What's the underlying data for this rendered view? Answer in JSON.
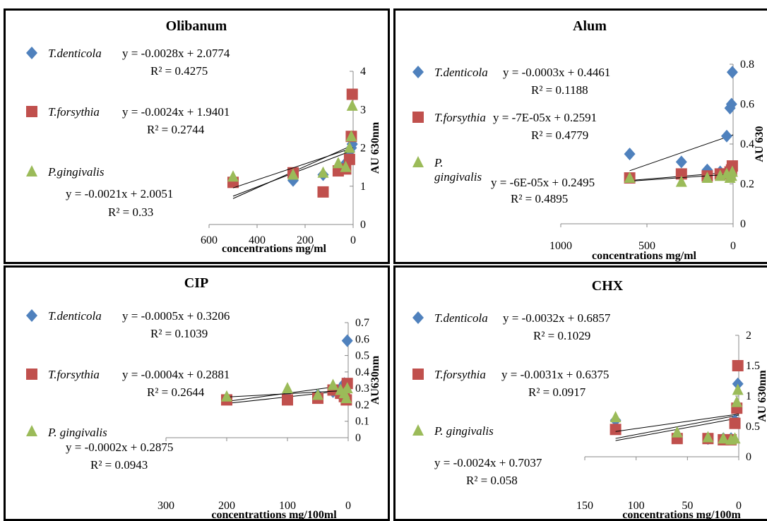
{
  "colors": {
    "td": "#4F81BD",
    "tf": "#C0504D",
    "pg": "#9BBB59"
  },
  "chart_data": [
    {
      "type": "scatter",
      "title": "Olibanum",
      "xlabel": "concentrations mg/ml",
      "ylabel": "AU 630nm",
      "xlim": [
        600,
        0
      ],
      "ylim": [
        0,
        4
      ],
      "xticks": [
        "600",
        "400",
        "200",
        "0"
      ],
      "yticks": [
        "0",
        "1",
        "2",
        "3",
        "4"
      ],
      "series": [
        {
          "name": "T.denticola",
          "marker": "diamond",
          "x": [
            500,
            250,
            125,
            62,
            31,
            15,
            7.5,
            3.75
          ],
          "y": [
            1.15,
            1.15,
            1.3,
            1.5,
            1.6,
            1.9,
            2.0,
            2.1
          ],
          "equation": "y = -0.0028x + 2.0774",
          "r2": "R² = 0.4275"
        },
        {
          "name": "T.forsythia",
          "marker": "square",
          "x": [
            500,
            250,
            125,
            62,
            31,
            15,
            7.5,
            3.75
          ],
          "y": [
            1.1,
            1.35,
            0.85,
            1.4,
            1.45,
            1.7,
            2.3,
            3.4
          ],
          "equation": "y = -0.0024x + 1.9401",
          "r2": "R² = 0.2744"
        },
        {
          "name": "P.gingivalis",
          "marker": "triangle",
          "x": [
            500,
            250,
            125,
            62,
            31,
            15,
            7.5,
            3.75
          ],
          "y": [
            1.25,
            1.3,
            1.35,
            1.6,
            1.5,
            2.0,
            2.3,
            3.1
          ],
          "equation": "y = -0.0021x + 2.0051",
          "r2": "R² = 0.33"
        }
      ]
    },
    {
      "type": "scatter",
      "title": "Alum",
      "xlabel": "concentrations mg/ml",
      "ylabel": "AU 630",
      "xlim": [
        1000,
        0
      ],
      "ylim": [
        0,
        0.8
      ],
      "xticks": [
        "1000",
        "500",
        "0"
      ],
      "yticks": [
        "0",
        "0.2",
        "0.4",
        "0.6",
        "0.8"
      ],
      "series": [
        {
          "name": "T.denticola",
          "marker": "diamond",
          "x": [
            600,
            300,
            150,
            75,
            37,
            18,
            9,
            4.5
          ],
          "y": [
            0.35,
            0.31,
            0.27,
            0.26,
            0.44,
            0.58,
            0.6,
            0.76
          ],
          "equation": "y = -0.0003x + 0.4461",
          "r2": "R² = 0.1188"
        },
        {
          "name": "T.forsythia",
          "marker": "square",
          "x": [
            600,
            300,
            150,
            75,
            37,
            18,
            9,
            4.5
          ],
          "y": [
            0.23,
            0.25,
            0.24,
            0.25,
            0.25,
            0.26,
            0.27,
            0.29
          ],
          "equation": "y = -7E-05x + 0.2591",
          "r2": "R² = 0.4779"
        },
        {
          "name": "P.\ngingivalis",
          "marker": "triangle",
          "x": [
            600,
            300,
            150,
            75,
            37,
            18,
            9,
            4.5
          ],
          "y": [
            0.23,
            0.21,
            0.23,
            0.24,
            0.25,
            0.23,
            0.24,
            0.26
          ],
          "equation": "y = -6E-05x + 0.2495",
          "r2": "R² = 0.4895"
        }
      ]
    },
    {
      "type": "scatter",
      "title": "CIP",
      "xlabel": "concentrattions mg/100ml",
      "ylabel": "AU630nm",
      "xlim": [
        300,
        0
      ],
      "ylim": [
        0,
        0.7
      ],
      "xticks": [
        "300",
        "200",
        "100",
        "0"
      ],
      "yticks": [
        "0",
        "0.1",
        "0.2",
        "0.3",
        "0.4",
        "0.5",
        "0.6",
        "0.7"
      ],
      "series": [
        {
          "name": "T.denticola",
          "marker": "diamond",
          "x": [
            200,
            100,
            50,
            25,
            12.5,
            6.25,
            3.1,
            1.5
          ],
          "y": [
            0.24,
            0.25,
            0.26,
            0.28,
            0.3,
            0.33,
            0.3,
            0.59
          ],
          "equation": "y = -0.0005x + 0.3206",
          "r2": "R² = 0.1039"
        },
        {
          "name": "T.forsythia",
          "marker": "square",
          "x": [
            200,
            100,
            50,
            25,
            12.5,
            6.25,
            3.1,
            1.5
          ],
          "y": [
            0.23,
            0.23,
            0.24,
            0.29,
            0.27,
            0.25,
            0.23,
            0.33
          ],
          "equation": "y = -0.0004x + 0.2881",
          "r2": "R² = 0.2644"
        },
        {
          "name": "P. gingivalis",
          "marker": "triangle",
          "x": [
            200,
            100,
            50,
            25,
            12.5,
            6.25,
            3.1,
            1.5
          ],
          "y": [
            0.25,
            0.3,
            0.26,
            0.32,
            0.29,
            0.27,
            0.24,
            0.3
          ],
          "equation": "y = -0.0002x + 0.2875",
          "r2": "R² = 0.0943"
        }
      ]
    },
    {
      "type": "scatter",
      "title": "CHX",
      "xlabel": "concentrations mg/100m",
      "ylabel": "AU 630nm",
      "xlim": [
        150,
        0
      ],
      "ylim": [
        0,
        2
      ],
      "xticks": [
        "150",
        "100",
        "50",
        "0"
      ],
      "yticks": [
        "0",
        "0.5",
        "1",
        "1.5",
        "2"
      ],
      "series": [
        {
          "name": "T.denticola",
          "marker": "diamond",
          "x": [
            120,
            60,
            30,
            15,
            7.5,
            3.75,
            1.9,
            0.9
          ],
          "y": [
            0.6,
            0.35,
            0.3,
            0.3,
            0.3,
            0.6,
            0.8,
            1.2
          ],
          "equation": "y = -0.0032x + 0.6857",
          "r2": "R² = 0.1029"
        },
        {
          "name": "T.forsythia",
          "marker": "square",
          "x": [
            120,
            60,
            30,
            15,
            7.5,
            3.75,
            1.9,
            0.9
          ],
          "y": [
            0.45,
            0.3,
            0.3,
            0.28,
            0.28,
            0.55,
            0.8,
            1.5
          ],
          "equation": "y = -0.0031x + 0.6375",
          "r2": "R² = 0.0917"
        },
        {
          "name": "P. gingivalis",
          "marker": "triangle",
          "x": [
            120,
            60,
            30,
            15,
            7.5,
            3.75,
            1.9,
            0.9
          ],
          "y": [
            0.65,
            0.4,
            0.32,
            0.3,
            0.28,
            0.3,
            0.9,
            1.1
          ],
          "equation": "y = -0.0024x + 0.7037",
          "r2": "R² = 0.058"
        }
      ]
    }
  ]
}
